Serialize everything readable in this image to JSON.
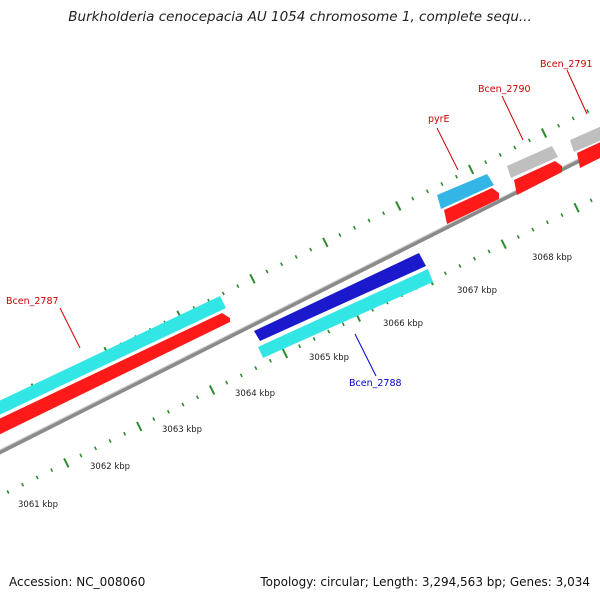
{
  "title": "Burkholderia cenocepacia AU 1054 chromosome 1, complete sequ...",
  "footer": {
    "accession": "Accession: NC_008060",
    "summary": "Topology: circular; Length: 3,294,563 bp; Genes: 3,034"
  },
  "colors": {
    "backbone": "#8a8a8a",
    "ticks": "#2e8b2e",
    "cds_cyan": "#33e6e6",
    "gene_red": "#ff1a1a",
    "cds_blue": "#1a1acc",
    "cds_skyblue": "#33b5e5",
    "gene_gray": "#bfbfbf",
    "label_red": "#cc0000",
    "label_blue": "#0000cc"
  },
  "kbp_labels": [
    "3061 kbp",
    "3062 kbp",
    "3063 kbp",
    "3064 kbp",
    "3065 kbp",
    "3066 kbp",
    "3067 kbp",
    "3068 kbp"
  ],
  "gene_labels": [
    {
      "id": "Bcen_2787",
      "color": "red"
    },
    {
      "id": "Bcen_2788",
      "color": "blue"
    },
    {
      "id": "pyrE",
      "color": "red"
    },
    {
      "id": "Bcen_2790",
      "color": "red"
    },
    {
      "id": "Bcen_2791",
      "color": "red"
    }
  ]
}
